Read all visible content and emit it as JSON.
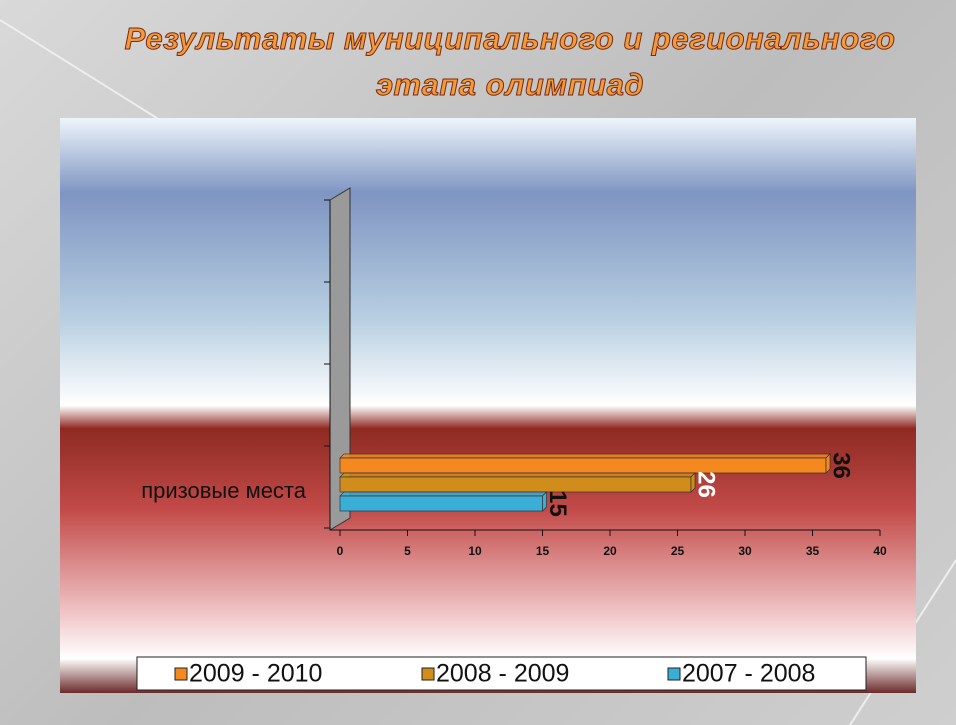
{
  "chart_data": {
    "type": "hbar",
    "title": "Результаты муниципального и регионального этапа олимпиад",
    "categories": [
      "призовые места"
    ],
    "series": [
      {
        "name": "2009 - 2010",
        "color": "#f5891f",
        "values": [
          36
        ]
      },
      {
        "name": "2008 - 2009",
        "color": "#d08d1c",
        "values": [
          26
        ]
      },
      {
        "name": "2007 - 2008",
        "color": "#3aaed6",
        "values": [
          15
        ]
      }
    ],
    "xlim": [
      0,
      40
    ],
    "xticks": [
      0,
      5,
      10,
      15,
      20,
      25,
      30,
      35,
      40
    ],
    "legend": "bottom"
  }
}
